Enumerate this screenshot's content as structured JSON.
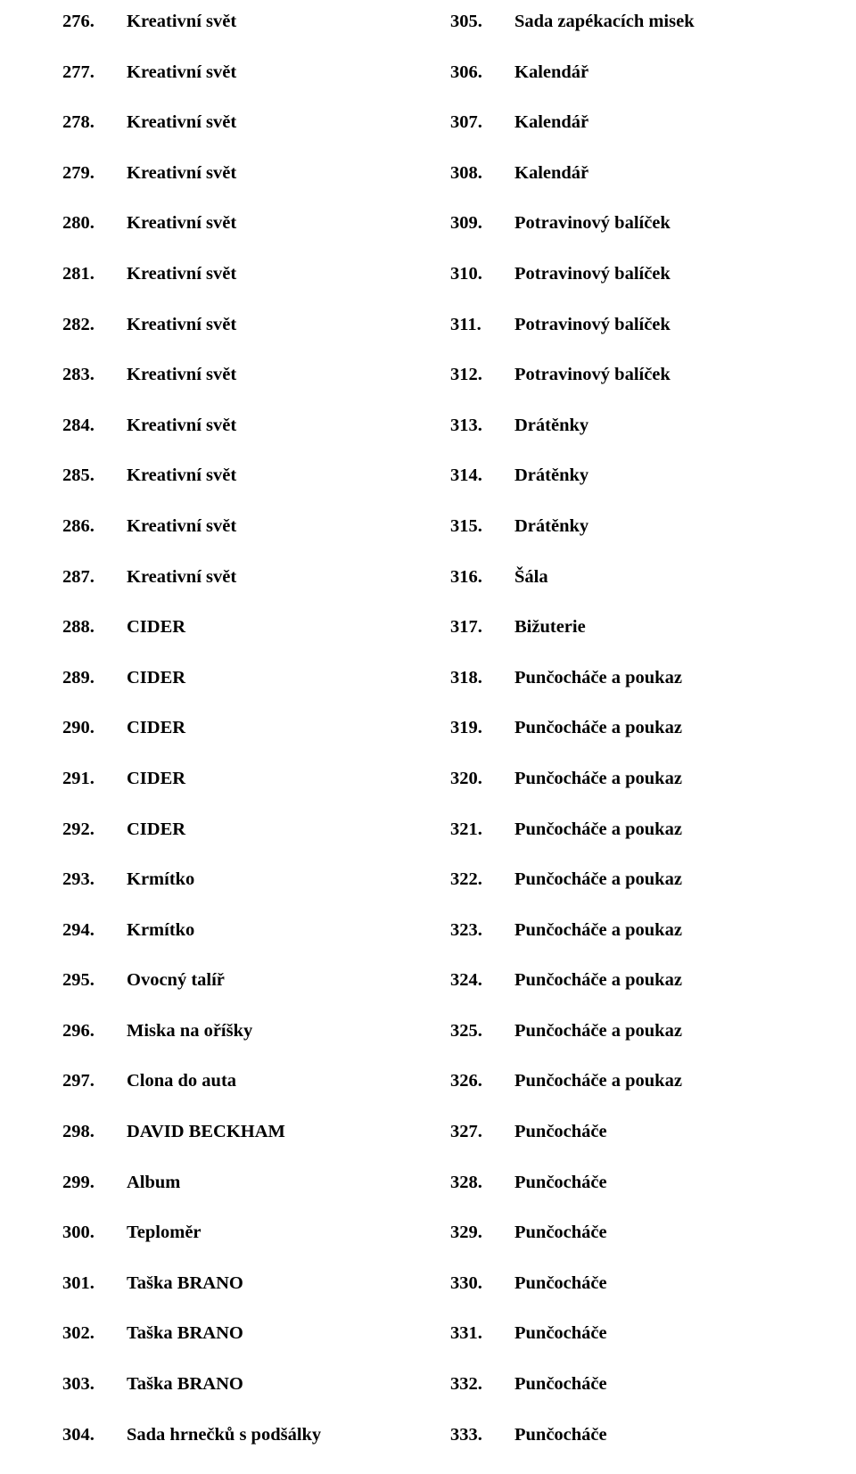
{
  "left": [
    {
      "n": "276.",
      "t": "Kreativní svět"
    },
    {
      "n": "277.",
      "t": "Kreativní svět"
    },
    {
      "n": "278.",
      "t": "Kreativní svět"
    },
    {
      "n": "279.",
      "t": "Kreativní svět"
    },
    {
      "n": "280.",
      "t": "Kreativní svět"
    },
    {
      "n": "281.",
      "t": "Kreativní svět"
    },
    {
      "n": "282.",
      "t": "Kreativní svět"
    },
    {
      "n": "283.",
      "t": "Kreativní svět"
    },
    {
      "n": "284.",
      "t": "Kreativní svět"
    },
    {
      "n": "285.",
      "t": "Kreativní svět"
    },
    {
      "n": "286.",
      "t": "Kreativní svět"
    },
    {
      "n": "287.",
      "t": "Kreativní svět"
    },
    {
      "n": "288.",
      "t": "CIDER"
    },
    {
      "n": "289.",
      "t": "CIDER"
    },
    {
      "n": "290.",
      "t": "CIDER"
    },
    {
      "n": "291.",
      "t": "CIDER"
    },
    {
      "n": "292.",
      "t": "CIDER"
    },
    {
      "n": "293.",
      "t": "Krmítko"
    },
    {
      "n": "294.",
      "t": "Krmítko"
    },
    {
      "n": "295.",
      "t": "Ovocný talíř"
    },
    {
      "n": "296.",
      "t": "Miska na oříšky"
    },
    {
      "n": "297.",
      "t": "Clona do auta"
    },
    {
      "n": "298.",
      "t": "DAVID BECKHAM"
    },
    {
      "n": "299.",
      "t": "Album"
    },
    {
      "n": "300.",
      "t": "Teploměr"
    },
    {
      "n": "301.",
      "t": "Taška BRANO"
    },
    {
      "n": "302.",
      "t": "Taška BRANO"
    },
    {
      "n": "303.",
      "t": "Taška BRANO"
    },
    {
      "n": "304.",
      "t": "Sada hrnečků s podšálky"
    }
  ],
  "right": [
    {
      "n": "305.",
      "t": "Sada zapékacích misek"
    },
    {
      "n": "306.",
      "t": "Kalendář"
    },
    {
      "n": "307.",
      "t": "Kalendář"
    },
    {
      "n": "308.",
      "t": "Kalendář"
    },
    {
      "n": "309.",
      "t": "Potravinový balíček"
    },
    {
      "n": "310.",
      "t": "Potravinový balíček"
    },
    {
      "n": "311.",
      "t": "Potravinový balíček"
    },
    {
      "n": "312.",
      "t": "Potravinový balíček"
    },
    {
      "n": "313.",
      "t": "Drátěnky"
    },
    {
      "n": "314.",
      "t": "Drátěnky"
    },
    {
      "n": "315.",
      "t": "Drátěnky"
    },
    {
      "n": "316.",
      "t": "Šála"
    },
    {
      "n": "317.",
      "t": "Bižuterie"
    },
    {
      "n": "318.",
      "t": "Punčocháče a poukaz"
    },
    {
      "n": "319.",
      "t": "Punčocháče a poukaz"
    },
    {
      "n": "320.",
      "t": "Punčocháče a poukaz"
    },
    {
      "n": "321.",
      "t": "Punčocháče a poukaz"
    },
    {
      "n": "322.",
      "t": "Punčocháče a poukaz"
    },
    {
      "n": "323.",
      "t": "Punčocháče a poukaz"
    },
    {
      "n": "324.",
      "t": "Punčocháče a poukaz"
    },
    {
      "n": "325.",
      "t": "Punčocháče a poukaz"
    },
    {
      "n": "326.",
      "t": "Punčocháče a poukaz"
    },
    {
      "n": "327.",
      "t": "Punčocháče"
    },
    {
      "n": "328.",
      "t": "Punčocháče"
    },
    {
      "n": "329.",
      "t": "Punčocháče"
    },
    {
      "n": "330.",
      "t": "Punčocháče"
    },
    {
      "n": "331.",
      "t": "Punčocháče"
    },
    {
      "n": "332.",
      "t": "Punčocháče"
    },
    {
      "n": "333.",
      "t": "Punčocháče"
    }
  ]
}
